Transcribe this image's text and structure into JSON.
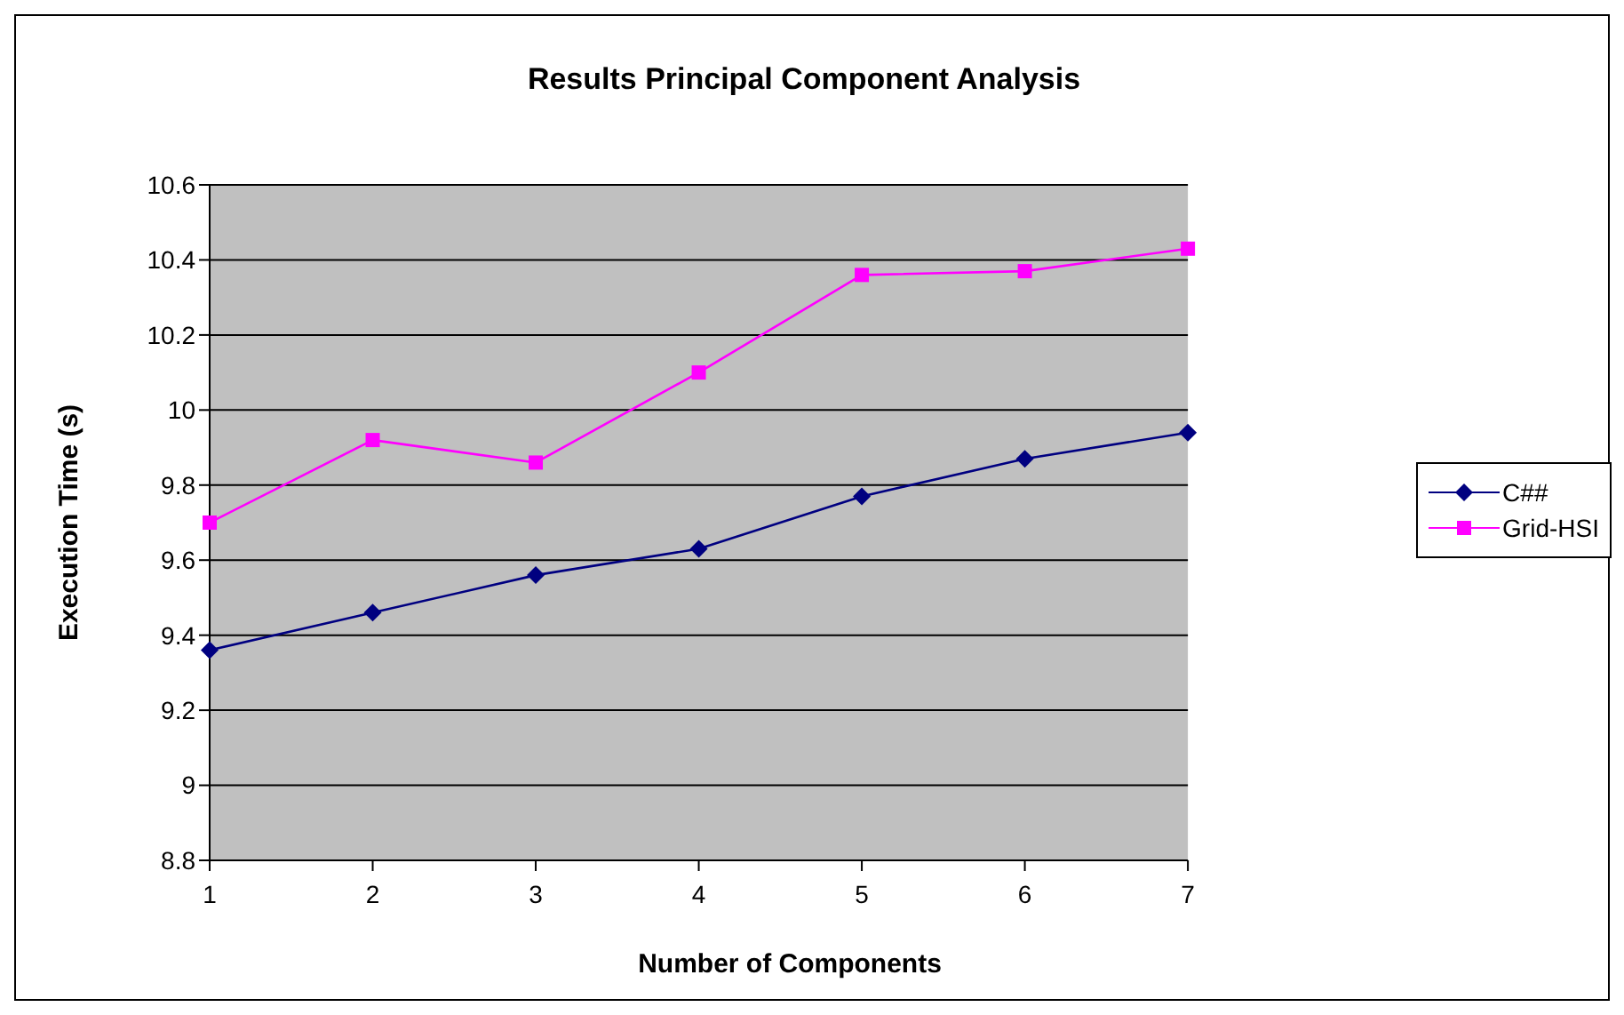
{
  "chart_data": {
    "type": "line",
    "title": "Results Principal Component Analysis",
    "xlabel": "Number of Components",
    "ylabel": "Execution Time (s)",
    "categories": [
      "1",
      "2",
      "3",
      "4",
      "5",
      "6",
      "7"
    ],
    "series": [
      {
        "name": "C##",
        "color": "#000080",
        "marker": "diamond",
        "values": [
          9.36,
          9.46,
          9.56,
          9.63,
          9.77,
          9.87,
          9.94
        ]
      },
      {
        "name": "Grid-HSI",
        "color": "#ff00ff",
        "marker": "square",
        "values": [
          9.7,
          9.92,
          9.86,
          10.1,
          10.36,
          10.37,
          10.43
        ]
      }
    ],
    "ylim": [
      8.8,
      10.6
    ],
    "yticks": [
      8.8,
      9,
      9.2,
      9.4,
      9.6,
      9.8,
      10,
      10.2,
      10.4,
      10.6
    ],
    "grid": "y",
    "legend": "right"
  }
}
